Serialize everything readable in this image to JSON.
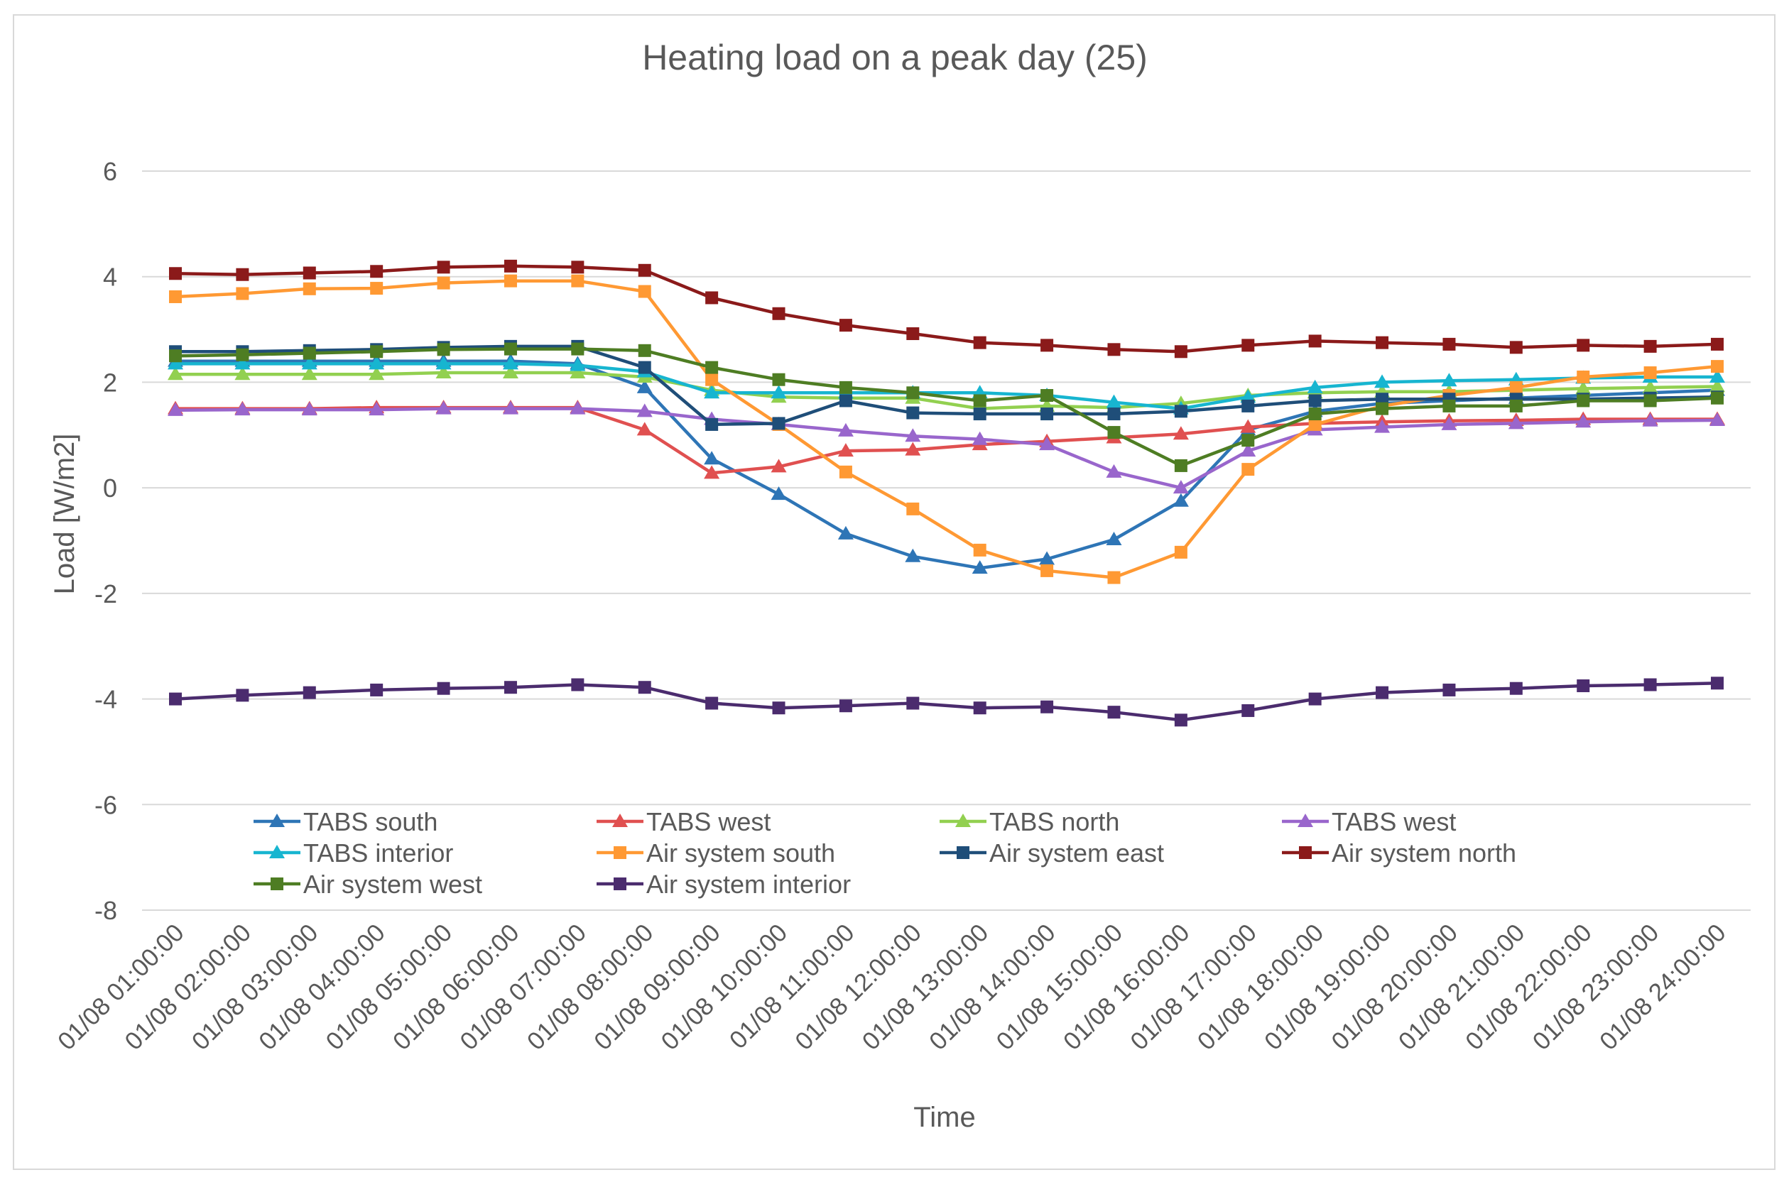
{
  "chart_data": {
    "type": "line",
    "title": "Heating load on a peak day (25)",
    "xlabel": "Time",
    "ylabel": "Load [W/m2]",
    "ylim": [
      -8,
      6
    ],
    "yticks": [
      6,
      4,
      2,
      0,
      -2,
      -4,
      -6,
      -8
    ],
    "grid": true,
    "legend_position": "bottom-inside",
    "categories": [
      "01/08  01:00:00",
      "01/08  02:00:00",
      "01/08  03:00:00",
      "01/08  04:00:00",
      "01/08  05:00:00",
      "01/08  06:00:00",
      "01/08  07:00:00",
      "01/08  08:00:00",
      "01/08  09:00:00",
      "01/08  10:00:00",
      "01/08  11:00:00",
      "01/08  12:00:00",
      "01/08  13:00:00",
      "01/08  14:00:00",
      "01/08  15:00:00",
      "01/08  16:00:00",
      "01/08  17:00:00",
      "01/08  18:00:00",
      "01/08  19:00:00",
      "01/08  20:00:00",
      "01/08  21:00:00",
      "01/08  22:00:00",
      "01/08  23:00:00",
      "01/08  24:00:00"
    ],
    "series": [
      {
        "name": "TABS south",
        "color": "#2e75b6",
        "marker": "triangle",
        "values": [
          2.4,
          2.4,
          2.4,
          2.4,
          2.4,
          2.4,
          2.35,
          1.9,
          0.55,
          -0.12,
          -0.87,
          -1.3,
          -1.52,
          -1.35,
          -0.98,
          -0.25,
          1.1,
          1.45,
          1.6,
          1.65,
          1.7,
          1.75,
          1.8,
          1.85
        ]
      },
      {
        "name": "TABS west",
        "color": "#e05050",
        "marker": "triangle",
        "values": [
          1.5,
          1.5,
          1.5,
          1.52,
          1.52,
          1.52,
          1.52,
          1.1,
          0.28,
          0.4,
          0.7,
          0.72,
          0.82,
          0.88,
          0.95,
          1.02,
          1.15,
          1.22,
          1.25,
          1.27,
          1.28,
          1.3,
          1.3,
          1.3
        ]
      },
      {
        "name": "TABS north",
        "color": "#92d050",
        "marker": "triangle",
        "values": [
          2.15,
          2.15,
          2.15,
          2.15,
          2.18,
          2.18,
          2.18,
          2.1,
          1.85,
          1.72,
          1.7,
          1.7,
          1.5,
          1.55,
          1.52,
          1.6,
          1.75,
          1.8,
          1.82,
          1.82,
          1.85,
          1.88,
          1.9,
          1.92
        ]
      },
      {
        "name": "TABS west",
        "color": "#9966cc",
        "marker": "triangle",
        "values": [
          1.47,
          1.48,
          1.48,
          1.48,
          1.5,
          1.5,
          1.5,
          1.45,
          1.3,
          1.2,
          1.08,
          0.98,
          0.92,
          0.82,
          0.3,
          0.0,
          0.7,
          1.1,
          1.15,
          1.2,
          1.22,
          1.25,
          1.27,
          1.28
        ]
      },
      {
        "name": "TABS interior",
        "color": "#17b5d0",
        "marker": "triangle",
        "values": [
          2.35,
          2.35,
          2.35,
          2.35,
          2.35,
          2.35,
          2.32,
          2.2,
          1.8,
          1.8,
          1.8,
          1.8,
          1.8,
          1.75,
          1.62,
          1.5,
          1.72,
          1.9,
          2.0,
          2.03,
          2.05,
          2.08,
          2.1,
          2.1
        ]
      },
      {
        "name": "Air system south",
        "color": "#ff9933",
        "marker": "square",
        "values": [
          3.62,
          3.68,
          3.77,
          3.78,
          3.88,
          3.92,
          3.92,
          3.72,
          2.05,
          1.2,
          0.3,
          -0.4,
          -1.18,
          -1.57,
          -1.7,
          -1.22,
          0.35,
          1.2,
          1.55,
          1.75,
          1.9,
          2.1,
          2.18,
          2.3
        ]
      },
      {
        "name": "Air system east",
        "color": "#1f4e79",
        "marker": "square",
        "values": [
          2.58,
          2.58,
          2.6,
          2.62,
          2.66,
          2.68,
          2.68,
          2.28,
          1.2,
          1.22,
          1.65,
          1.42,
          1.4,
          1.4,
          1.4,
          1.45,
          1.55,
          1.65,
          1.68,
          1.68,
          1.68,
          1.68,
          1.7,
          1.72
        ]
      },
      {
        "name": "Air system north",
        "color": "#8b1a1a",
        "marker": "square",
        "values": [
          4.06,
          4.04,
          4.07,
          4.1,
          4.18,
          4.2,
          4.18,
          4.12,
          3.6,
          3.3,
          3.08,
          2.92,
          2.75,
          2.7,
          2.62,
          2.58,
          2.7,
          2.78,
          2.75,
          2.72,
          2.66,
          2.7,
          2.68,
          2.72
        ]
      },
      {
        "name": "Air system west",
        "color": "#4e7d23",
        "marker": "square",
        "values": [
          2.5,
          2.52,
          2.55,
          2.58,
          2.62,
          2.63,
          2.63,
          2.6,
          2.28,
          2.05,
          1.9,
          1.8,
          1.65,
          1.75,
          1.05,
          0.42,
          0.9,
          1.4,
          1.5,
          1.55,
          1.55,
          1.65,
          1.65,
          1.7
        ]
      },
      {
        "name": "Air system interior",
        "color": "#4b2c6e",
        "marker": "square",
        "values": [
          -4.0,
          -3.93,
          -3.88,
          -3.83,
          -3.8,
          -3.78,
          -3.73,
          -3.78,
          -4.08,
          -4.17,
          -4.13,
          -4.08,
          -4.17,
          -4.15,
          -4.25,
          -4.4,
          -4.22,
          -4.0,
          -3.88,
          -3.83,
          -3.8,
          -3.75,
          -3.73,
          -3.7
        ]
      }
    ]
  }
}
